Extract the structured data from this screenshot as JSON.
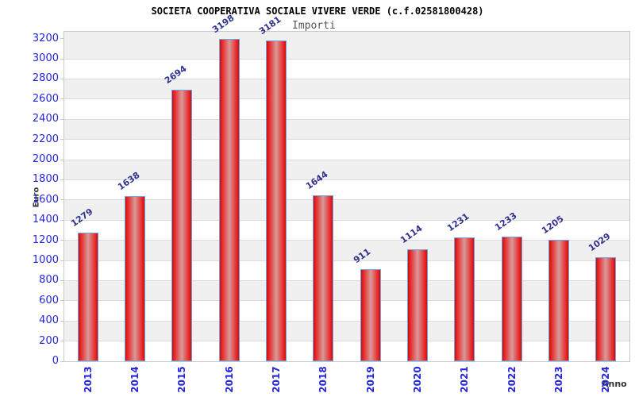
{
  "chart_data": {
    "type": "bar",
    "title": "SOCIETA COOPERATIVA SOCIALE VIVERE VERDE (c.f.02581800428)",
    "legend": "Importi",
    "legend_position": "top-center",
    "xlabel": "Anno",
    "ylabel": "Euro",
    "categories": [
      "2013",
      "2014",
      "2015",
      "2016",
      "2017",
      "2018",
      "2019",
      "2020",
      "2021",
      "2022",
      "2023",
      "2024"
    ],
    "values": [
      1279,
      1638,
      2694,
      3198,
      3181,
      1644,
      911,
      1114,
      1231,
      1233,
      1205,
      1029
    ],
    "ylim": [
      0,
      3268
    ],
    "ytick_step": 200,
    "ytick_max_labeled": 3200,
    "grid": "horizontal gridlines with alternating gray/white bands every 200",
    "colors": {
      "bar_edge": "#c41414",
      "bar_bright": "#ea2020",
      "bar_center": "#d89a9a",
      "bar_border": "#6fa3e0",
      "tick_label_blue": "#2424d9",
      "value_label_navy": "#31318f",
      "band_gray": "#f0f0f0",
      "gridline_gray": "#dcdcdc",
      "plot_border": "#c8c8c8",
      "title_color": "#000000",
      "legend_color": "#555555",
      "axis_title_color": "#333333"
    }
  }
}
